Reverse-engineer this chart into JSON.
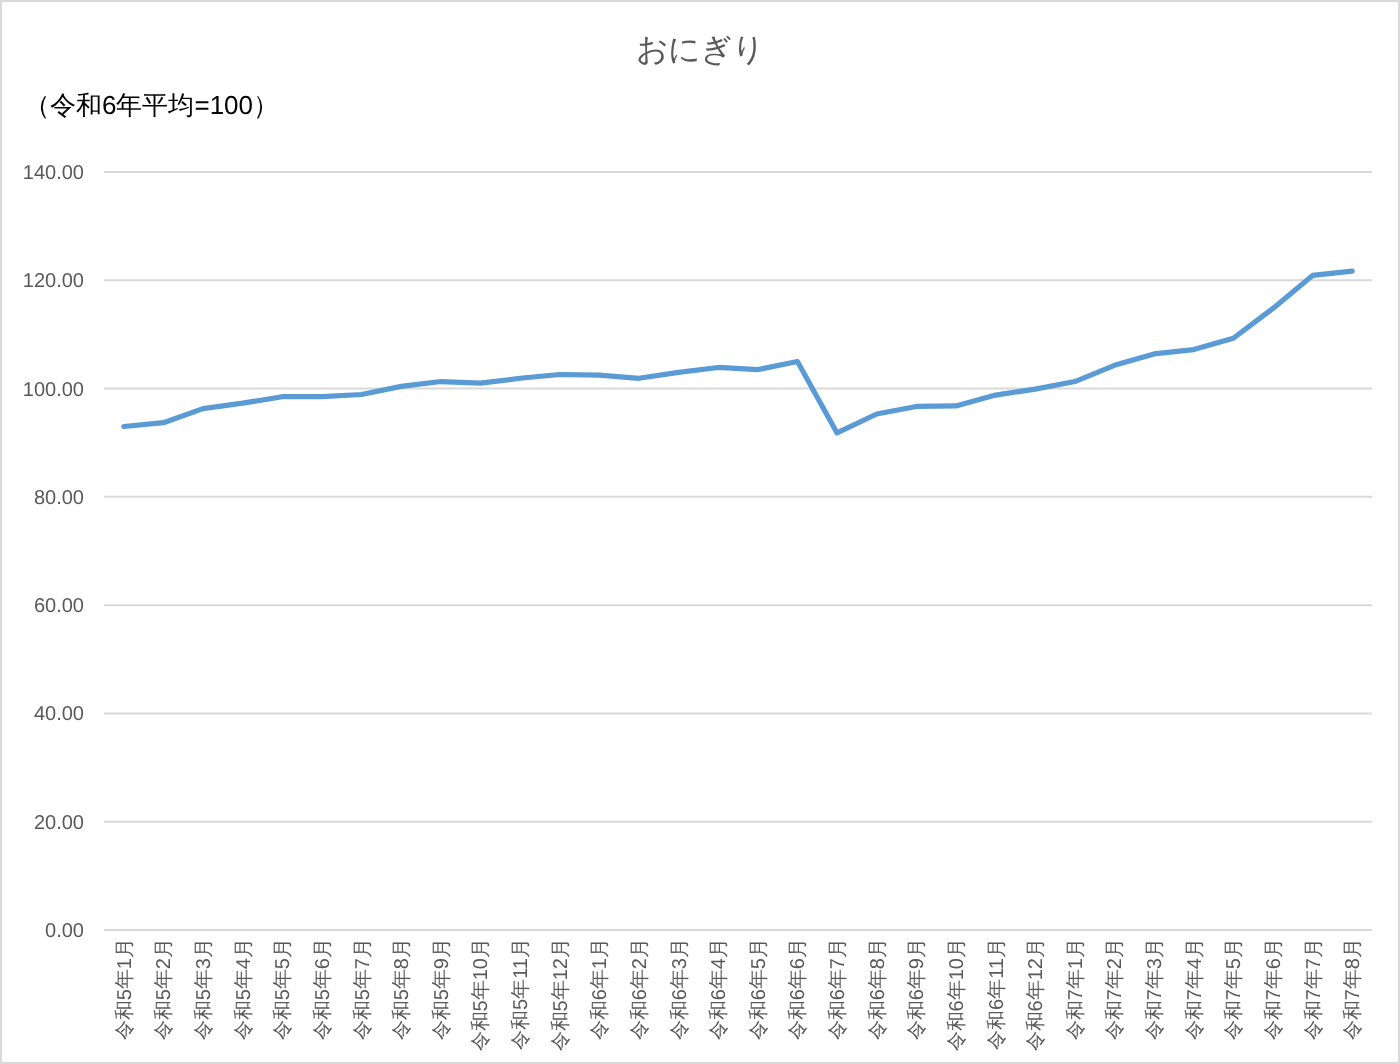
{
  "chart_data": {
    "type": "line",
    "title": "おにぎり",
    "ylabel": "（令和6年平均=100）",
    "categories": [
      "令和5年1月",
      "令和5年2月",
      "令和5年3月",
      "令和5年4月",
      "令和5年5月",
      "令和5年6月",
      "令和5年7月",
      "令和5年8月",
      "令和5年9月",
      "令和5年10月",
      "令和5年11月",
      "令和5年12月",
      "令和6年1月",
      "令和6年2月",
      "令和6年3月",
      "令和6年4月",
      "令和6年5月",
      "令和6年6月",
      "令和6年7月",
      "令和6年8月",
      "令和6年9月",
      "令和6年10月",
      "令和6年11月",
      "令和6年12月",
      "令和7年1月",
      "令和7年2月",
      "令和7年3月",
      "令和7年4月",
      "令和7年5月",
      "令和7年6月",
      "令和7年7月",
      "令和7年8月"
    ],
    "series": [
      {
        "color": "#5b9bd5",
        "values": [
          93.0,
          93.7,
          96.3,
          97.3,
          98.5,
          98.5,
          98.9,
          100.4,
          101.3,
          101.0,
          101.9,
          102.6,
          102.5,
          101.9,
          103.0,
          103.9,
          103.5,
          105.0,
          91.8,
          95.3,
          96.7,
          96.8,
          98.8,
          99.9,
          101.3,
          104.3,
          106.4,
          107.2,
          109.3,
          114.8,
          120.9,
          121.7
        ]
      }
    ],
    "ylim": [
      0,
      140
    ],
    "yticks": [
      {
        "value": 0,
        "label": "0.00"
      },
      {
        "value": 20,
        "label": "20.00"
      },
      {
        "value": 40,
        "label": "40.00"
      },
      {
        "value": 60,
        "label": "60.00"
      },
      {
        "value": 80,
        "label": "80.00"
      },
      {
        "value": 100,
        "label": "100.00"
      },
      {
        "value": 120,
        "label": "120.00"
      },
      {
        "value": 140,
        "label": "140.00"
      }
    ],
    "grid": "y"
  }
}
